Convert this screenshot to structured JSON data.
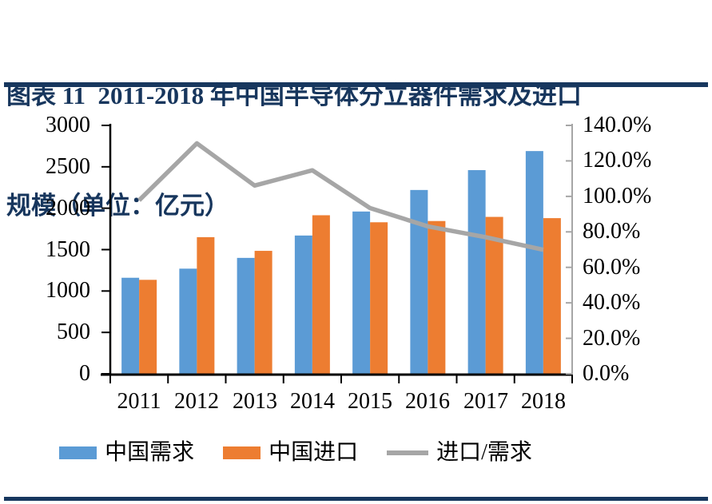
{
  "page": {
    "title_line1": "图表 11  2011-2018 年中国半导体分立器件需求及进口",
    "title_line2": "规模（单位：亿元）",
    "accent_color": "#17375E"
  },
  "chart_data": {
    "type": "bar",
    "title": "图表 11 2011-2018 年中国半导体分立器件需求及进口规模（单位：亿元）",
    "categories": [
      "2011",
      "2012",
      "2013",
      "2014",
      "2015",
      "2016",
      "2017",
      "2018"
    ],
    "series": [
      {
        "name": "中国需求",
        "type": "bar",
        "axis": "left",
        "color": "#5B9BD5",
        "values": [
          1160,
          1270,
          1400,
          1670,
          1960,
          2220,
          2460,
          2690
        ]
      },
      {
        "name": "中国进口",
        "type": "bar",
        "axis": "left",
        "color": "#ED7D31",
        "values": [
          1135,
          1650,
          1485,
          1915,
          1830,
          1845,
          1895,
          1880
        ]
      },
      {
        "name": "进口/需求",
        "type": "line",
        "axis": "right",
        "color": "#A6A6A6",
        "values_percent": [
          97.8,
          129.9,
          106.1,
          114.7,
          93.4,
          83.1,
          77.0,
          69.9
        ]
      }
    ],
    "left_axis": {
      "min": 0,
      "max": 3000,
      "step": 500,
      "tick_labels": [
        "3000",
        "2500",
        "2000",
        "1500",
        "1000",
        "500",
        "0"
      ]
    },
    "right_axis": {
      "min": 0,
      "max": 140,
      "step": 20,
      "tick_labels": [
        "140.0%",
        "120.0%",
        "100.0%",
        "80.0%",
        "60.0%",
        "40.0%",
        "20.0%",
        "0.0%"
      ]
    },
    "grid": false,
    "legend_position": "bottom",
    "axis_color": "#000000",
    "right_axis_line_color": "#A6A6A6"
  }
}
